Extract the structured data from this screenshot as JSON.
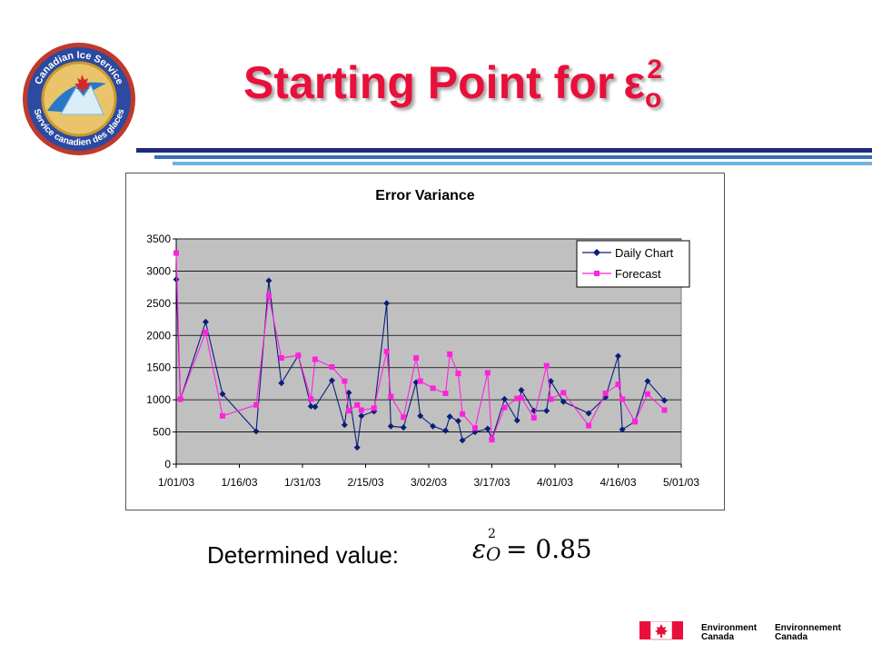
{
  "logo": {
    "text_top": "Canadian Ice Service",
    "text_bottom": "Service canadien des glaces"
  },
  "title": {
    "text": "Starting Point for",
    "symbol": "ε",
    "subscript": "o",
    "superscript": "2"
  },
  "colors": {
    "title": "#e8103a",
    "bar_dark": "#1f2a7a",
    "bar_light": "#6fb2e4",
    "series_daily": "#0a1e78",
    "series_forecast": "#ff22dd",
    "plot_bg": "#c0c0c0"
  },
  "chart_data": {
    "type": "line",
    "title": "Error Variance",
    "xlabel": "",
    "ylabel": "",
    "ylim": [
      0,
      3500
    ],
    "yticks": [
      0,
      500,
      1000,
      1500,
      2000,
      2500,
      3000,
      3500
    ],
    "xticks": [
      "1/01/03",
      "1/16/03",
      "1/31/03",
      "2/15/03",
      "3/02/03",
      "3/17/03",
      "4/01/03",
      "4/16/03",
      "5/01/03"
    ],
    "grid": true,
    "legend_position": "top-right",
    "series": [
      {
        "name": "Daily Chart",
        "color": "#0a1e78",
        "marker": "diamond",
        "points": [
          [
            "1/01/03",
            2870
          ],
          [
            "1/02/03",
            1010
          ],
          [
            "1/08/03",
            2210
          ],
          [
            "1/12/03",
            1090
          ],
          [
            "1/20/03",
            510
          ],
          [
            "1/23/03",
            2850
          ],
          [
            "1/26/03",
            1260
          ],
          [
            "1/30/03",
            1690
          ],
          [
            "2/02/03",
            900
          ],
          [
            "2/03/03",
            890
          ],
          [
            "2/07/03",
            1300
          ],
          [
            "2/10/03",
            610
          ],
          [
            "2/11/03",
            1110
          ],
          [
            "2/13/03",
            260
          ],
          [
            "2/14/03",
            750
          ],
          [
            "2/17/03",
            820
          ],
          [
            "2/20/03",
            2500
          ],
          [
            "2/21/03",
            590
          ],
          [
            "2/24/03",
            570
          ],
          [
            "2/27/03",
            1270
          ],
          [
            "2/28/03",
            750
          ],
          [
            "3/03/03",
            590
          ],
          [
            "3/06/03",
            520
          ],
          [
            "3/07/03",
            740
          ],
          [
            "3/09/03",
            670
          ],
          [
            "3/10/03",
            370
          ],
          [
            "3/13/03",
            500
          ],
          [
            "3/16/03",
            550
          ],
          [
            "3/17/03",
            390
          ],
          [
            "3/20/03",
            1010
          ],
          [
            "3/23/03",
            680
          ],
          [
            "3/24/03",
            1150
          ],
          [
            "3/27/03",
            830
          ],
          [
            "3/30/03",
            830
          ],
          [
            "3/31/03",
            1290
          ],
          [
            "4/03/03",
            970
          ],
          [
            "4/09/03",
            790
          ],
          [
            "4/13/03",
            1040
          ],
          [
            "4/16/03",
            1680
          ],
          [
            "4/17/03",
            540
          ],
          [
            "4/20/03",
            660
          ],
          [
            "4/23/03",
            1290
          ],
          [
            "4/27/03",
            990
          ]
        ]
      },
      {
        "name": "Forecast",
        "color": "#ff22dd",
        "marker": "square",
        "points": [
          [
            "1/01/03",
            3280
          ],
          [
            "1/02/03",
            1010
          ],
          [
            "1/08/03",
            2050
          ],
          [
            "1/12/03",
            750
          ],
          [
            "1/20/03",
            920
          ],
          [
            "1/23/03",
            2620
          ],
          [
            "1/26/03",
            1650
          ],
          [
            "1/30/03",
            1690
          ],
          [
            "2/02/03",
            1010
          ],
          [
            "2/03/03",
            1630
          ],
          [
            "2/07/03",
            1510
          ],
          [
            "2/10/03",
            1290
          ],
          [
            "2/11/03",
            830
          ],
          [
            "2/13/03",
            920
          ],
          [
            "2/14/03",
            840
          ],
          [
            "2/17/03",
            870
          ],
          [
            "2/20/03",
            1750
          ],
          [
            "2/21/03",
            1050
          ],
          [
            "2/24/03",
            730
          ],
          [
            "2/27/03",
            1650
          ],
          [
            "2/28/03",
            1290
          ],
          [
            "3/03/03",
            1180
          ],
          [
            "3/06/03",
            1100
          ],
          [
            "3/07/03",
            1710
          ],
          [
            "3/09/03",
            1410
          ],
          [
            "3/10/03",
            780
          ],
          [
            "3/13/03",
            560
          ],
          [
            "3/16/03",
            1420
          ],
          [
            "3/17/03",
            380
          ],
          [
            "3/20/03",
            880
          ],
          [
            "3/23/03",
            1020
          ],
          [
            "3/24/03",
            1030
          ],
          [
            "3/27/03",
            720
          ],
          [
            "3/30/03",
            1530
          ],
          [
            "3/31/03",
            1010
          ],
          [
            "4/03/03",
            1110
          ],
          [
            "4/09/03",
            600
          ],
          [
            "4/13/03",
            1100
          ],
          [
            "4/16/03",
            1240
          ],
          [
            "4/17/03",
            1010
          ],
          [
            "4/20/03",
            660
          ],
          [
            "4/23/03",
            1090
          ],
          [
            "4/27/03",
            840
          ]
        ]
      }
    ]
  },
  "determined": {
    "label": "Determined value:",
    "equals": "= 0.85",
    "symbol": "ε",
    "sub": "O",
    "sup": "2"
  },
  "footer": {
    "en_line1": "Environment",
    "en_line2": "Canada",
    "fr_line1": "Environnement",
    "fr_line2": "Canada"
  }
}
